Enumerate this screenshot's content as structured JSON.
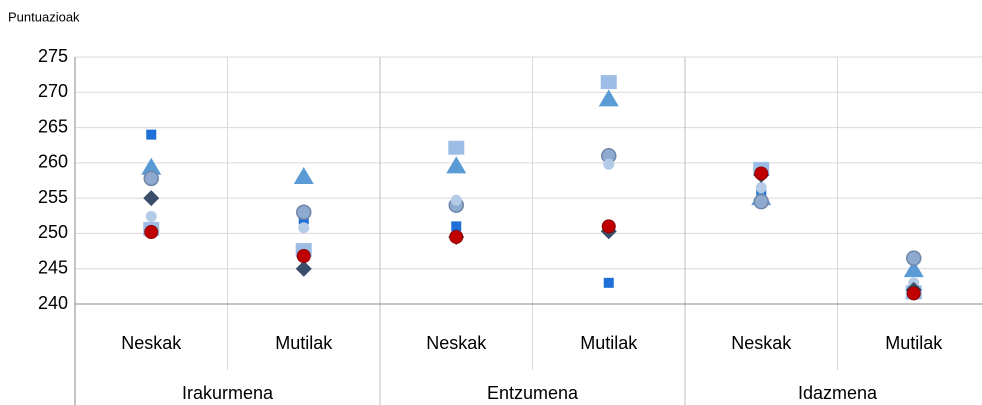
{
  "chart_data": {
    "type": "dot",
    "y_label": "Puntuazioak",
    "categories": [
      "Neskak",
      "Mutilak",
      "Neskak",
      "Mutilak",
      "Neskak",
      "Mutilak"
    ],
    "groups": [
      "Irakurmena",
      "Entzumena",
      "Idazmena"
    ],
    "ylim": [
      240,
      275
    ],
    "yticks": [
      240,
      245,
      250,
      255,
      260,
      265,
      270,
      275
    ],
    "grid": true,
    "series": [
      {
        "color": "#9dbde6",
        "marker": "square",
        "values": [
          250.5,
          247.5,
          262,
          271.3,
          259,
          241.5
        ]
      },
      {
        "color": "#1f6fd8",
        "marker": "small-square",
        "values": [
          264,
          252,
          251,
          243,
          256,
          242
        ]
      },
      {
        "color": "#5b9bd5",
        "marker": "triangle",
        "values": [
          259.3,
          258,
          259.5,
          269,
          255,
          244.8
        ]
      },
      {
        "color": "#8eaad0",
        "marker": "circle",
        "values": [
          257.8,
          253,
          254,
          261,
          254.5,
          246.5
        ]
      },
      {
        "color": "#b4cbe8",
        "marker": "small-circle",
        "values": [
          252.4,
          250.8,
          254.7,
          259.8,
          256.5,
          243
        ]
      },
      {
        "color": "#3a4d6b",
        "marker": "diamond",
        "values": [
          255,
          245,
          249.5,
          250.3,
          258.3,
          242
        ]
      },
      {
        "color": "#c00000",
        "marker": "red-circle",
        "values": [
          250.2,
          246.8,
          249.5,
          251,
          258.5,
          241.5
        ]
      }
    ]
  }
}
